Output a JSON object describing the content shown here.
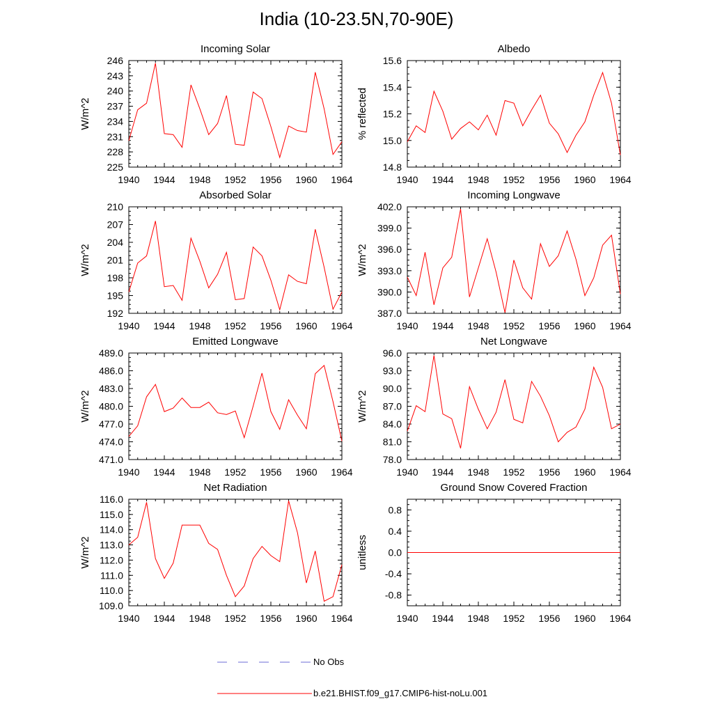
{
  "title": "India (10-23.5N,70-90E)",
  "legend": [
    {
      "label": "No Obs",
      "color": "#6b6bd6",
      "dashed": true
    },
    {
      "label": "b.e21.BHIST.f09_g17.CMIP6-hist-noLu.001",
      "color": "#ff0000",
      "dashed": false
    }
  ],
  "chart_data": [
    {
      "type": "line",
      "title": "Incoming Solar",
      "ylabel": "W/m^2",
      "xlim": [
        1940,
        1964
      ],
      "ylim": [
        225,
        246
      ],
      "xticks": [
        "1940",
        "1944",
        "1948",
        "1952",
        "1956",
        "1960",
        "1964"
      ],
      "yticks": [
        "225",
        "228",
        "231",
        "234",
        "237",
        "240",
        "243",
        "246"
      ],
      "x": [
        1940,
        1941,
        1942,
        1943,
        1944,
        1945,
        1946,
        1947,
        1948,
        1949,
        1950,
        1951,
        1952,
        1953,
        1954,
        1955,
        1956,
        1957,
        1958,
        1959,
        1960,
        1961,
        1962,
        1963,
        1964
      ],
      "series": [
        {
          "values": [
            230.2,
            236.3,
            237.6,
            245.5,
            231.6,
            231.4,
            228.9,
            241.2,
            236.5,
            231.4,
            233.6,
            239.1,
            229.5,
            229.3,
            239.8,
            238.5,
            233.0,
            226.9,
            233.1,
            232.2,
            231.9,
            243.7,
            236.5,
            227.5,
            230.0
          ]
        }
      ]
    },
    {
      "type": "line",
      "title": "Albedo",
      "ylabel": "% reflected",
      "xlim": [
        1940,
        1964
      ],
      "ylim": [
        14.8,
        15.6
      ],
      "xticks": [
        "1940",
        "1944",
        "1948",
        "1952",
        "1956",
        "1960",
        "1964"
      ],
      "yticks": [
        "14.8",
        "15.0",
        "15.2",
        "15.4",
        "15.6"
      ],
      "x": [
        1940,
        1941,
        1942,
        1943,
        1944,
        1945,
        1946,
        1947,
        1948,
        1949,
        1950,
        1951,
        1952,
        1953,
        1954,
        1955,
        1956,
        1957,
        1958,
        1959,
        1960,
        1961,
        1962,
        1963,
        1964
      ],
      "series": [
        {
          "values": [
            14.99,
            15.11,
            15.06,
            15.37,
            15.22,
            15.01,
            15.09,
            15.14,
            15.08,
            15.19,
            15.04,
            15.3,
            15.28,
            15.11,
            15.23,
            15.34,
            15.13,
            15.05,
            14.91,
            15.04,
            15.14,
            15.34,
            15.51,
            15.28,
            14.89
          ]
        }
      ]
    },
    {
      "type": "line",
      "title": "Absorbed Solar",
      "ylabel": "W/m^2",
      "xlim": [
        1940,
        1964
      ],
      "ylim": [
        192,
        210
      ],
      "xticks": [
        "1940",
        "1944",
        "1948",
        "1952",
        "1956",
        "1960",
        "1964"
      ],
      "yticks": [
        "192",
        "195",
        "198",
        "201",
        "204",
        "207",
        "210"
      ],
      "x": [
        1940,
        1941,
        1942,
        1943,
        1944,
        1945,
        1946,
        1947,
        1948,
        1949,
        1950,
        1951,
        1952,
        1953,
        1954,
        1955,
        1956,
        1957,
        1958,
        1959,
        1960,
        1961,
        1962,
        1963,
        1964
      ],
      "series": [
        {
          "values": [
            195.6,
            200.5,
            201.7,
            207.6,
            196.5,
            196.7,
            194.2,
            204.7,
            200.8,
            196.3,
            198.6,
            202.3,
            194.3,
            194.5,
            203.2,
            201.7,
            197.6,
            192.6,
            198.5,
            197.4,
            197.0,
            206.2,
            199.8,
            192.7,
            195.6
          ]
        }
      ]
    },
    {
      "type": "line",
      "title": "Incoming Longwave",
      "ylabel": "W/m^2",
      "xlim": [
        1940,
        1964
      ],
      "ylim": [
        387.0,
        402.0
      ],
      "xticks": [
        "1940",
        "1944",
        "1948",
        "1952",
        "1956",
        "1960",
        "1964"
      ],
      "yticks": [
        "387.0",
        "390.0",
        "393.0",
        "396.0",
        "399.0",
        "402.0"
      ],
      "x": [
        1940,
        1941,
        1942,
        1943,
        1944,
        1945,
        1946,
        1947,
        1948,
        1949,
        1950,
        1951,
        1952,
        1953,
        1954,
        1955,
        1956,
        1957,
        1958,
        1959,
        1960,
        1961,
        1962,
        1963,
        1964
      ],
      "series": [
        {
          "values": [
            392.1,
            389.5,
            395.6,
            388.2,
            393.4,
            394.9,
            401.7,
            389.3,
            393.4,
            397.5,
            392.8,
            387.1,
            394.5,
            390.6,
            389.0,
            396.8,
            393.6,
            395.1,
            398.6,
            394.6,
            389.5,
            392.0,
            396.6,
            398.0,
            389.7
          ]
        }
      ]
    },
    {
      "type": "line",
      "title": "Emitted Longwave",
      "ylabel": "W/m^2",
      "xlim": [
        1940,
        1964
      ],
      "ylim": [
        471.0,
        489.0
      ],
      "xticks": [
        "1940",
        "1944",
        "1948",
        "1952",
        "1956",
        "1960",
        "1964"
      ],
      "yticks": [
        "471.0",
        "474.0",
        "477.0",
        "480.0",
        "483.0",
        "486.0",
        "489.0"
      ],
      "x": [
        1940,
        1941,
        1942,
        1943,
        1944,
        1945,
        1946,
        1947,
        1948,
        1949,
        1950,
        1951,
        1952,
        1953,
        1954,
        1955,
        1956,
        1957,
        1958,
        1959,
        1960,
        1961,
        1962,
        1963,
        1964
      ],
      "series": [
        {
          "values": [
            474.9,
            476.7,
            481.6,
            483.7,
            479.1,
            479.7,
            481.4,
            479.8,
            479.8,
            480.7,
            478.9,
            478.6,
            479.2,
            474.7,
            480.0,
            485.6,
            479.1,
            476.1,
            481.1,
            478.5,
            476.2,
            485.5,
            486.9,
            480.8,
            474.1
          ]
        }
      ]
    },
    {
      "type": "line",
      "title": "Net Longwave",
      "ylabel": "W/m^2",
      "xlim": [
        1940,
        1964
      ],
      "ylim": [
        78.0,
        96.0
      ],
      "xticks": [
        "1940",
        "1944",
        "1948",
        "1952",
        "1956",
        "1960",
        "1964"
      ],
      "yticks": [
        "78.0",
        "81.0",
        "84.0",
        "87.0",
        "90.0",
        "93.0",
        "96.0"
      ],
      "x": [
        1940,
        1941,
        1942,
        1943,
        1944,
        1945,
        1946,
        1947,
        1948,
        1949,
        1950,
        1951,
        1952,
        1953,
        1954,
        1955,
        1956,
        1957,
        1958,
        1959,
        1960,
        1961,
        1962,
        1963,
        1964
      ],
      "series": [
        {
          "values": [
            82.8,
            87.1,
            86.1,
            95.6,
            85.7,
            84.9,
            79.9,
            90.3,
            86.5,
            83.2,
            86.0,
            91.5,
            84.8,
            84.2,
            91.2,
            88.7,
            85.4,
            81.0,
            82.6,
            83.5,
            86.5,
            93.6,
            90.2,
            83.2,
            84.0
          ]
        }
      ]
    },
    {
      "type": "line",
      "title": "Net Radiation",
      "ylabel": "W/m^2",
      "xlim": [
        1940,
        1964
      ],
      "ylim": [
        109.0,
        116.0
      ],
      "xticks": [
        "1940",
        "1944",
        "1948",
        "1952",
        "1956",
        "1960",
        "1964"
      ],
      "yticks": [
        "109.0",
        "110.0",
        "111.0",
        "112.0",
        "113.0",
        "114.0",
        "115.0",
        "116.0"
      ],
      "x": [
        1940,
        1941,
        1942,
        1943,
        1944,
        1945,
        1946,
        1947,
        1948,
        1949,
        1950,
        1951,
        1952,
        1953,
        1954,
        1955,
        1956,
        1957,
        1958,
        1959,
        1960,
        1961,
        1962,
        1963,
        1964
      ],
      "series": [
        {
          "values": [
            113.0,
            113.5,
            115.8,
            112.1,
            110.8,
            111.8,
            114.3,
            114.3,
            114.3,
            113.1,
            112.7,
            111.0,
            109.6,
            110.3,
            112.1,
            112.9,
            112.3,
            111.9,
            115.9,
            113.8,
            110.5,
            112.6,
            109.3,
            109.6,
            111.7
          ]
        }
      ]
    },
    {
      "type": "line",
      "title": "Ground Snow Covered Fraction",
      "ylabel": "unitless",
      "xlim": [
        1940,
        1964
      ],
      "ylim": [
        -1.0,
        1.0
      ],
      "xticks": [
        "1940",
        "1944",
        "1948",
        "1952",
        "1956",
        "1960",
        "1964"
      ],
      "yticks": [
        "-0.8",
        "-0.4",
        "0.0",
        "0.4",
        "0.8"
      ],
      "ytick_values": [
        -0.8,
        -0.4,
        0.0,
        0.4,
        0.8
      ],
      "x": [
        1940,
        1964
      ],
      "series": [
        {
          "values": [
            0.0,
            0.0
          ]
        }
      ]
    }
  ]
}
